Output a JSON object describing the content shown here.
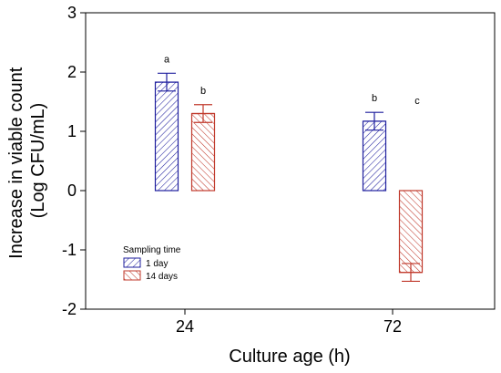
{
  "chart_data": {
    "type": "bar",
    "title": "",
    "xlabel": "Culture age (h)",
    "ylabel_line1": "Increase in viable count",
    "ylabel_line2": "(Log CFU/mL)",
    "categories": [
      "24",
      "72"
    ],
    "ylim": [
      -2,
      3
    ],
    "yticks": [
      "-2",
      "-1",
      "0",
      "1",
      "2",
      "3"
    ],
    "legend_title": "Sampling time",
    "legend_placement": "bottom-left",
    "grid": false,
    "series": [
      {
        "name": "1 day",
        "color": "#1f1f9e",
        "values": [
          1.83,
          1.17
        ],
        "se": [
          0.15,
          0.15
        ],
        "letters": [
          "a",
          "b"
        ]
      },
      {
        "name": "14 days",
        "color": "#c0392b",
        "values": [
          1.3,
          -1.38
        ],
        "se": [
          0.15,
          0.15
        ],
        "letters": [
          "b",
          "c"
        ]
      }
    ]
  }
}
